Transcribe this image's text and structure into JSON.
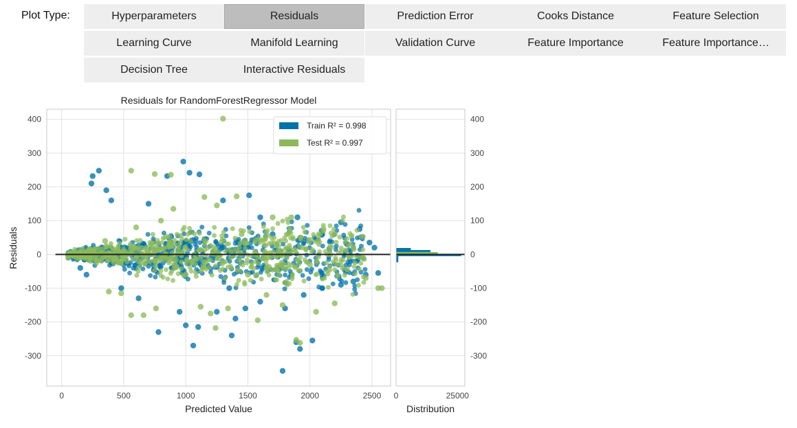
{
  "toolbar": {
    "label": "Plot Type:",
    "buttons": [
      {
        "label": "Hyperparameters",
        "active": false
      },
      {
        "label": "Residuals",
        "active": true
      },
      {
        "label": "Prediction Error",
        "active": false
      },
      {
        "label": "Cooks Distance",
        "active": false
      },
      {
        "label": "Feature Selection",
        "active": false
      },
      {
        "label": "Learning Curve",
        "active": false
      },
      {
        "label": "Manifold Learning",
        "active": false
      },
      {
        "label": "Validation Curve",
        "active": false
      },
      {
        "label": "Feature Importance",
        "active": false
      },
      {
        "label": "Feature Importance…",
        "active": false
      },
      {
        "label": "Decision Tree",
        "active": false
      },
      {
        "label": "Interactive Residuals",
        "active": false
      }
    ]
  },
  "chart_data": {
    "type": "scatter",
    "title": "Residuals for RandomForestRegressor Model",
    "xlabel": "Predicted Value",
    "ylabel": "Residuals",
    "xlim": [
      -120,
      2650
    ],
    "ylim": [
      -390,
      430
    ],
    "xticks": [
      0,
      500,
      1000,
      1500,
      2000,
      2500
    ],
    "yticks": [
      -300,
      -200,
      -100,
      0,
      100,
      200,
      300,
      400
    ],
    "grid": true,
    "legend_position": "top-right",
    "zero_line": 0,
    "series": [
      {
        "name": "Train R² = 0.998",
        "color": "#0072a8",
        "points": [
          [
            300,
            248
          ],
          [
            850,
            232
          ],
          [
            980,
            275
          ],
          [
            1030,
            242
          ],
          [
            1110,
            237
          ],
          [
            250,
            232
          ],
          [
            360,
            190
          ],
          [
            240,
            210
          ],
          [
            1510,
            175
          ],
          [
            1300,
            160
          ],
          [
            400,
            160
          ],
          [
            700,
            150
          ],
          [
            1900,
            110
          ],
          [
            2250,
            95
          ],
          [
            2400,
            75
          ],
          [
            2480,
            35
          ],
          [
            2520,
            20
          ],
          [
            2550,
            -55
          ],
          [
            2450,
            -60
          ],
          [
            2350,
            -80
          ],
          [
            2250,
            -90
          ],
          [
            2100,
            -100
          ],
          [
            1950,
            -120
          ],
          [
            1800,
            -160
          ],
          [
            1600,
            -140
          ],
          [
            1400,
            -190
          ],
          [
            1250,
            -170
          ],
          [
            1100,
            -215
          ],
          [
            1060,
            -270
          ],
          [
            1000,
            -210
          ],
          [
            780,
            -230
          ],
          [
            1370,
            -240
          ],
          [
            1890,
            -260
          ],
          [
            1920,
            -280
          ],
          [
            2020,
            -255
          ],
          [
            1780,
            -345
          ],
          [
            1480,
            -160
          ],
          [
            950,
            -170
          ],
          [
            620,
            -130
          ],
          [
            480,
            -100
          ],
          [
            200,
            -60
          ],
          [
            150,
            -40
          ],
          [
            1700,
            60
          ],
          [
            2100,
            60
          ],
          [
            1850,
            -60
          ],
          [
            1150,
            45
          ],
          [
            900,
            -40
          ],
          [
            1600,
            110
          ],
          [
            2300,
            30
          ],
          [
            1350,
            -100
          ]
        ]
      },
      {
        "name": "Test R² = 0.997",
        "color": "#8cba5a",
        "points": [
          [
            1300,
            402
          ],
          [
            560,
            248
          ],
          [
            750,
            238
          ],
          [
            880,
            236
          ],
          [
            1410,
            172
          ],
          [
            1150,
            170
          ],
          [
            900,
            135
          ],
          [
            1250,
            145
          ],
          [
            1850,
            110
          ],
          [
            1700,
            110
          ],
          [
            2110,
            75
          ],
          [
            2200,
            60
          ],
          [
            2300,
            -45
          ],
          [
            2450,
            -70
          ],
          [
            2580,
            -100
          ],
          [
            2550,
            -100
          ],
          [
            2200,
            -145
          ],
          [
            1780,
            -150
          ],
          [
            1580,
            -195
          ],
          [
            1340,
            -160
          ],
          [
            1240,
            -218
          ],
          [
            1200,
            -175
          ],
          [
            1120,
            -155
          ],
          [
            760,
            -160
          ],
          [
            660,
            -180
          ],
          [
            560,
            -180
          ],
          [
            480,
            -115
          ],
          [
            380,
            -110
          ],
          [
            1890,
            -253
          ],
          [
            1920,
            -262
          ],
          [
            1650,
            -120
          ],
          [
            2050,
            -170
          ],
          [
            2000,
            -30
          ],
          [
            1450,
            60
          ],
          [
            1000,
            -60
          ],
          [
            350,
            40
          ],
          [
            600,
            80
          ],
          [
            1500,
            -60
          ],
          [
            2350,
            20
          ],
          [
            800,
            100
          ]
        ]
      }
    ],
    "distribution": {
      "xlabel": "Distribution",
      "xlim": [
        0,
        28000
      ],
      "xticks": [
        0,
        25000
      ],
      "bins": [
        {
          "y": 16,
          "count": 6000,
          "series": "Train"
        },
        {
          "y": 10,
          "count": 14000,
          "series": "Train"
        },
        {
          "y": 4,
          "count": 17000,
          "series": "Test"
        },
        {
          "y": -2,
          "count": 26500,
          "series": "Train"
        },
        {
          "y": -8,
          "count": 900,
          "series": "Train"
        },
        {
          "y": -14,
          "count": 900,
          "series": "Train"
        },
        {
          "y": -20,
          "count": 900,
          "series": "Train"
        }
      ]
    }
  }
}
